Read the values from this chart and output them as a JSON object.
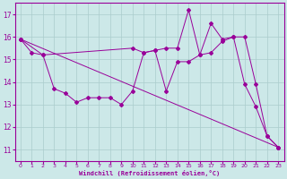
{
  "xlabel": "Windchill (Refroidissement éolien,°C)",
  "bg_color": "#cce8e8",
  "line_color": "#990099",
  "grid_color": "#aacccc",
  "x_ticks": [
    0,
    1,
    2,
    3,
    4,
    5,
    6,
    7,
    8,
    9,
    10,
    11,
    12,
    13,
    14,
    15,
    16,
    17,
    18,
    19,
    20,
    21,
    22,
    23
  ],
  "y_ticks": [
    11,
    12,
    13,
    14,
    15,
    16,
    17
  ],
  "ylim": [
    10.5,
    17.5
  ],
  "xlim": [
    -0.5,
    23.5
  ],
  "series": [
    {
      "x": [
        0,
        1,
        2,
        3,
        4,
        5,
        6,
        7,
        8,
        9,
        10,
        11,
        12,
        13,
        14,
        15,
        16,
        17,
        18,
        19,
        20,
        21,
        22,
        23
      ],
      "y": [
        15.9,
        15.3,
        15.2,
        13.7,
        13.5,
        13.1,
        13.3,
        13.3,
        13.3,
        13.0,
        13.6,
        15.3,
        15.4,
        13.6,
        14.9,
        14.9,
        15.2,
        15.3,
        15.8,
        16.0,
        13.9,
        12.9,
        11.6,
        11.1
      ]
    },
    {
      "x": [
        0,
        2,
        10,
        11,
        12,
        13,
        14,
        15,
        16,
        17,
        18,
        19,
        20,
        21,
        22,
        23
      ],
      "y": [
        15.9,
        15.2,
        15.5,
        15.3,
        15.4,
        15.5,
        15.5,
        17.2,
        15.2,
        16.6,
        15.9,
        16.0,
        16.0,
        13.9,
        11.6,
        11.1
      ]
    },
    {
      "x": [
        0,
        23
      ],
      "y": [
        15.9,
        11.1
      ]
    }
  ]
}
